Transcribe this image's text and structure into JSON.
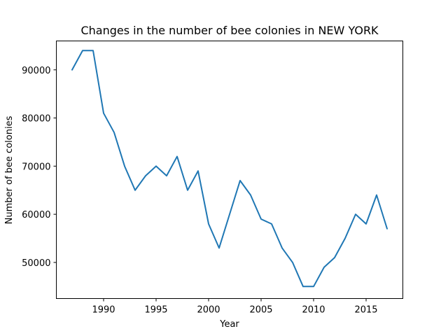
{
  "chart_data": {
    "type": "line",
    "title": "Changes in the number of bee colonies in NEW YORK",
    "xlabel": "Year",
    "ylabel": "Number of bee colonies",
    "xlim": [
      1985.5,
      2018.5
    ],
    "ylim": [
      42500,
      96000
    ],
    "x_ticks": [
      1990,
      1995,
      2000,
      2005,
      2010,
      2015
    ],
    "y_ticks": [
      50000,
      60000,
      70000,
      80000,
      90000
    ],
    "grid": false,
    "color": "#1f77b4",
    "x": [
      1987,
      1988,
      1989,
      1990,
      1991,
      1992,
      1993,
      1994,
      1995,
      1996,
      1997,
      1998,
      1999,
      2000,
      2001,
      2002,
      2003,
      2004,
      2005,
      2006,
      2007,
      2008,
      2009,
      2010,
      2011,
      2012,
      2013,
      2014,
      2015,
      2016,
      2017
    ],
    "series": [
      {
        "values": [
          90000,
          94000,
          94000,
          81000,
          77000,
          70000,
          65000,
          68000,
          70000,
          68000,
          72000,
          65000,
          69000,
          58000,
          53000,
          60000,
          67000,
          64000,
          59000,
          58000,
          53000,
          50000,
          45000,
          45000,
          49000,
          51000,
          55000,
          60000,
          58000,
          64000,
          57000
        ]
      }
    ]
  }
}
